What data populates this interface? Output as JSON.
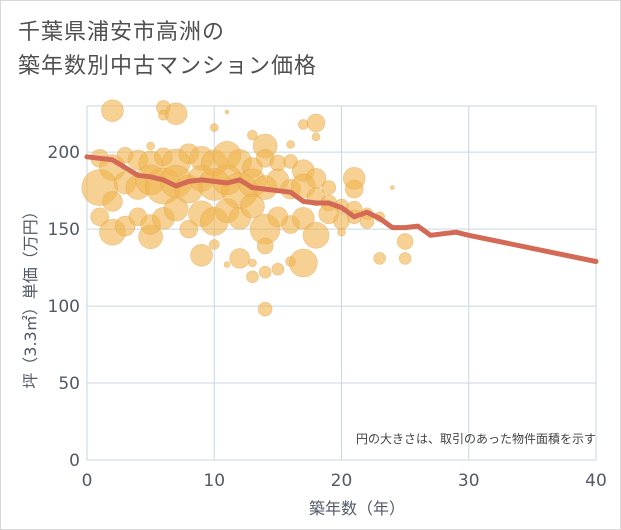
{
  "title_line1": "千葉県浦安市高洲の",
  "title_line2": "築年数別中古マンション価格",
  "note": "円の大きさは、取引のあった物件面積を示す",
  "colors": {
    "bubble": "#f0b450",
    "line": "#d36a55",
    "grid": "#c8d6e2",
    "background": "#ffffff"
  },
  "chart_data": {
    "type": "scatter",
    "title": "",
    "xlabel": "築年数（年）",
    "ylabel": "坪（3.3㎡）単価（万円）",
    "xlim": [
      0,
      40
    ],
    "ylim": [
      0,
      230
    ],
    "x_ticks": [
      0,
      10,
      20,
      30,
      40
    ],
    "y_ticks": [
      0,
      50,
      100,
      150,
      200
    ],
    "grid": true,
    "series": [
      {
        "kind": "bubbles",
        "points": [
          {
            "x": 2,
            "y": 227,
            "r": 11
          },
          {
            "x": 6,
            "y": 229,
            "r": 7
          },
          {
            "x": 7,
            "y": 225,
            "r": 11
          },
          {
            "x": 6,
            "y": 224,
            "r": 5
          },
          {
            "x": 10,
            "y": 216,
            "r": 4
          },
          {
            "x": 11,
            "y": 226,
            "r": 2
          },
          {
            "x": 17,
            "y": 218,
            "r": 5
          },
          {
            "x": 18,
            "y": 219,
            "r": 9
          },
          {
            "x": 18,
            "y": 210,
            "r": 4
          },
          {
            "x": 13,
            "y": 211,
            "r": 5
          },
          {
            "x": 14,
            "y": 204,
            "r": 12
          },
          {
            "x": 1,
            "y": 196,
            "r": 9
          },
          {
            "x": 2,
            "y": 190,
            "r": 13
          },
          {
            "x": 3,
            "y": 198,
            "r": 8
          },
          {
            "x": 4,
            "y": 195,
            "r": 10
          },
          {
            "x": 5,
            "y": 193,
            "r": 12
          },
          {
            "x": 6,
            "y": 197,
            "r": 9
          },
          {
            "x": 7,
            "y": 193,
            "r": 14
          },
          {
            "x": 8,
            "y": 199,
            "r": 10
          },
          {
            "x": 9,
            "y": 196,
            "r": 12
          },
          {
            "x": 10,
            "y": 193,
            "r": 13
          },
          {
            "x": 11,
            "y": 198,
            "r": 14
          },
          {
            "x": 12,
            "y": 194,
            "r": 12
          },
          {
            "x": 13,
            "y": 190,
            "r": 10
          },
          {
            "x": 14,
            "y": 196,
            "r": 9
          },
          {
            "x": 15,
            "y": 193,
            "r": 8
          },
          {
            "x": 16,
            "y": 194,
            "r": 7
          },
          {
            "x": 17,
            "y": 188,
            "r": 11
          },
          {
            "x": 18,
            "y": 183,
            "r": 10
          },
          {
            "x": 19,
            "y": 177,
            "r": 7
          },
          {
            "x": 21,
            "y": 183,
            "r": 11
          },
          {
            "x": 21,
            "y": 176,
            "r": 9
          },
          {
            "x": 24,
            "y": 177,
            "r": 2
          },
          {
            "x": 16,
            "y": 205,
            "r": 4
          },
          {
            "x": 5,
            "y": 204,
            "r": 4
          },
          {
            "x": 1,
            "y": 177,
            "r": 18
          },
          {
            "x": 2,
            "y": 168,
            "r": 10
          },
          {
            "x": 3,
            "y": 180,
            "r": 11
          },
          {
            "x": 4,
            "y": 177,
            "r": 12
          },
          {
            "x": 5,
            "y": 182,
            "r": 15
          },
          {
            "x": 6,
            "y": 178,
            "r": 18
          },
          {
            "x": 7,
            "y": 181,
            "r": 16
          },
          {
            "x": 8,
            "y": 176,
            "r": 14
          },
          {
            "x": 9,
            "y": 183,
            "r": 13
          },
          {
            "x": 10,
            "y": 179,
            "r": 16
          },
          {
            "x": 11,
            "y": 182,
            "r": 15
          },
          {
            "x": 12,
            "y": 175,
            "r": 18
          },
          {
            "x": 13,
            "y": 180,
            "r": 14
          },
          {
            "x": 14,
            "y": 177,
            "r": 12
          },
          {
            "x": 15,
            "y": 182,
            "r": 11
          },
          {
            "x": 16,
            "y": 176,
            "r": 10
          },
          {
            "x": 17,
            "y": 178,
            "r": 12
          },
          {
            "x": 18,
            "y": 171,
            "r": 9
          },
          {
            "x": 19,
            "y": 167,
            "r": 8
          },
          {
            "x": 20,
            "y": 165,
            "r": 7
          },
          {
            "x": 21,
            "y": 163,
            "r": 8
          },
          {
            "x": 22,
            "y": 160,
            "r": 6
          },
          {
            "x": 23,
            "y": 158,
            "r": 5
          },
          {
            "x": 1,
            "y": 158,
            "r": 9
          },
          {
            "x": 2,
            "y": 148,
            "r": 13
          },
          {
            "x": 3,
            "y": 152,
            "r": 10
          },
          {
            "x": 4,
            "y": 158,
            "r": 9
          },
          {
            "x": 5,
            "y": 145,
            "r": 12
          },
          {
            "x": 5,
            "y": 153,
            "r": 10
          },
          {
            "x": 6,
            "y": 157,
            "r": 11
          },
          {
            "x": 7,
            "y": 163,
            "r": 12
          },
          {
            "x": 8,
            "y": 150,
            "r": 9
          },
          {
            "x": 9,
            "y": 160,
            "r": 13
          },
          {
            "x": 10,
            "y": 155,
            "r": 14
          },
          {
            "x": 11,
            "y": 162,
            "r": 12
          },
          {
            "x": 12,
            "y": 157,
            "r": 11
          },
          {
            "x": 13,
            "y": 165,
            "r": 12
          },
          {
            "x": 14,
            "y": 150,
            "r": 15
          },
          {
            "x": 15,
            "y": 158,
            "r": 10
          },
          {
            "x": 16,
            "y": 153,
            "r": 9
          },
          {
            "x": 17,
            "y": 157,
            "r": 11
          },
          {
            "x": 18,
            "y": 146,
            "r": 13
          },
          {
            "x": 19,
            "y": 160,
            "r": 10
          },
          {
            "x": 20,
            "y": 155,
            "r": 8
          },
          {
            "x": 21,
            "y": 158,
            "r": 7
          },
          {
            "x": 22,
            "y": 155,
            "r": 7
          },
          {
            "x": 20,
            "y": 148,
            "r": 4
          },
          {
            "x": 9,
            "y": 133,
            "r": 11
          },
          {
            "x": 10,
            "y": 140,
            "r": 5
          },
          {
            "x": 12,
            "y": 131,
            "r": 10
          },
          {
            "x": 13,
            "y": 128,
            "r": 4
          },
          {
            "x": 14,
            "y": 139,
            "r": 8
          },
          {
            "x": 14,
            "y": 122,
            "r": 6
          },
          {
            "x": 13,
            "y": 119,
            "r": 6
          },
          {
            "x": 15,
            "y": 124,
            "r": 6
          },
          {
            "x": 16,
            "y": 129,
            "r": 5
          },
          {
            "x": 17,
            "y": 128,
            "r": 14
          },
          {
            "x": 23,
            "y": 131,
            "r": 6
          },
          {
            "x": 25,
            "y": 142,
            "r": 8
          },
          {
            "x": 25,
            "y": 131,
            "r": 6
          },
          {
            "x": 14,
            "y": 98,
            "r": 7
          },
          {
            "x": 11,
            "y": 127,
            "r": 3
          }
        ]
      },
      {
        "kind": "line",
        "x": [
          0,
          2,
          4,
          5,
          6,
          7,
          8,
          9,
          10,
          11,
          12,
          13,
          14,
          15,
          16,
          17,
          18,
          19,
          20,
          21,
          22,
          23,
          24,
          25,
          26,
          27,
          28,
          29,
          30,
          40
        ],
        "y": [
          197,
          195,
          185,
          184,
          182,
          178,
          181,
          182,
          181,
          180,
          182,
          177,
          176,
          175,
          174,
          168,
          167,
          167,
          164,
          158,
          161,
          157,
          151,
          151,
          152,
          146,
          147,
          148,
          146,
          129
        ]
      }
    ]
  }
}
